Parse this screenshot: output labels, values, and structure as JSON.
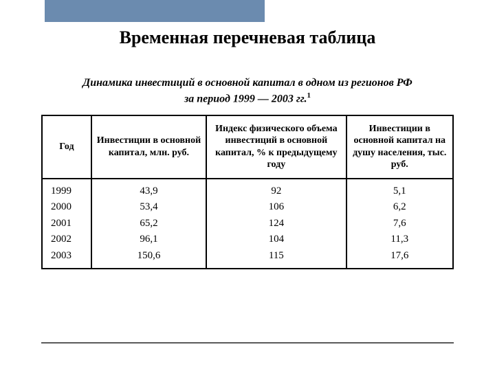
{
  "header_bar": {
    "color": "#6b8baf"
  },
  "page_title": "Временная перечневая таблица",
  "table": {
    "caption_line1": "Динамика инвестиций в основной капитал в одном из регионов РФ",
    "caption_line2": "за период 1999 — 2003 гг.",
    "footnote_marker": "1",
    "columns": [
      "Год",
      "Инвестиции в основной капитал, млн. руб.",
      "Индекс физического объема инвестиций в основной капитал, % к предыдущему году",
      "Инвестиции в основной капитал на душу населения, тыс. руб."
    ],
    "column_widths_pct": [
      12,
      28,
      34,
      26
    ],
    "rows": [
      {
        "year": "1999",
        "invest": "43,9",
        "index": "92",
        "capita": "5,1"
      },
      {
        "year": "2000",
        "invest": "53,4",
        "index": "106",
        "capita": "6,2"
      },
      {
        "year": "2001",
        "invest": "65,2",
        "index": "124",
        "capita": "7,6"
      },
      {
        "year": "2002",
        "invest": "96,1",
        "index": "104",
        "capita": "11,3"
      },
      {
        "year": "2003",
        "invest": "150,6",
        "index": "115",
        "capita": "17,6"
      }
    ],
    "border_color": "#000000",
    "text_color": "#000000",
    "header_fontsize": 14,
    "cell_fontsize": 15
  },
  "footer_rule_color": "#5a5a5a",
  "background_color": "#ffffff"
}
